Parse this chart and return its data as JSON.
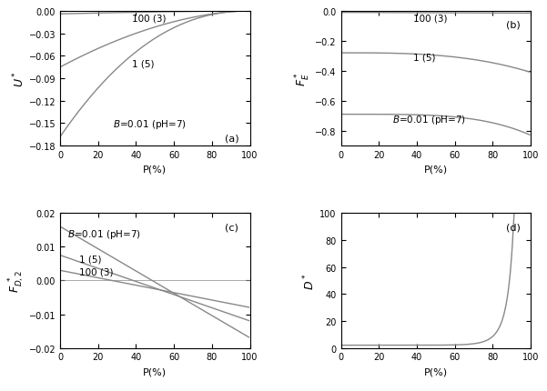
{
  "panel_labels": [
    "(a)",
    "(b)",
    "(c)",
    "(d)"
  ],
  "xlabel": "P(%)",
  "xlim": [
    0,
    100
  ],
  "ylim_a": [
    -0.18,
    0.0
  ],
  "ylim_b": [
    -0.9,
    0.0
  ],
  "ylim_c": [
    -0.02,
    0.02
  ],
  "ylim_d": [
    0,
    100
  ],
  "yticks_a": [
    0.0,
    -0.03,
    -0.06,
    -0.09,
    -0.12,
    -0.15,
    -0.18
  ],
  "yticks_b": [
    0.0,
    -0.2,
    -0.4,
    -0.6,
    -0.8
  ],
  "yticks_c": [
    0.02,
    0.01,
    0.0,
    -0.01,
    -0.02
  ],
  "yticks_d": [
    0,
    20,
    40,
    60,
    80,
    100
  ],
  "xticks": [
    0,
    20,
    40,
    60,
    80,
    100
  ],
  "line_color": "#888888",
  "bg_color": "#ffffff"
}
